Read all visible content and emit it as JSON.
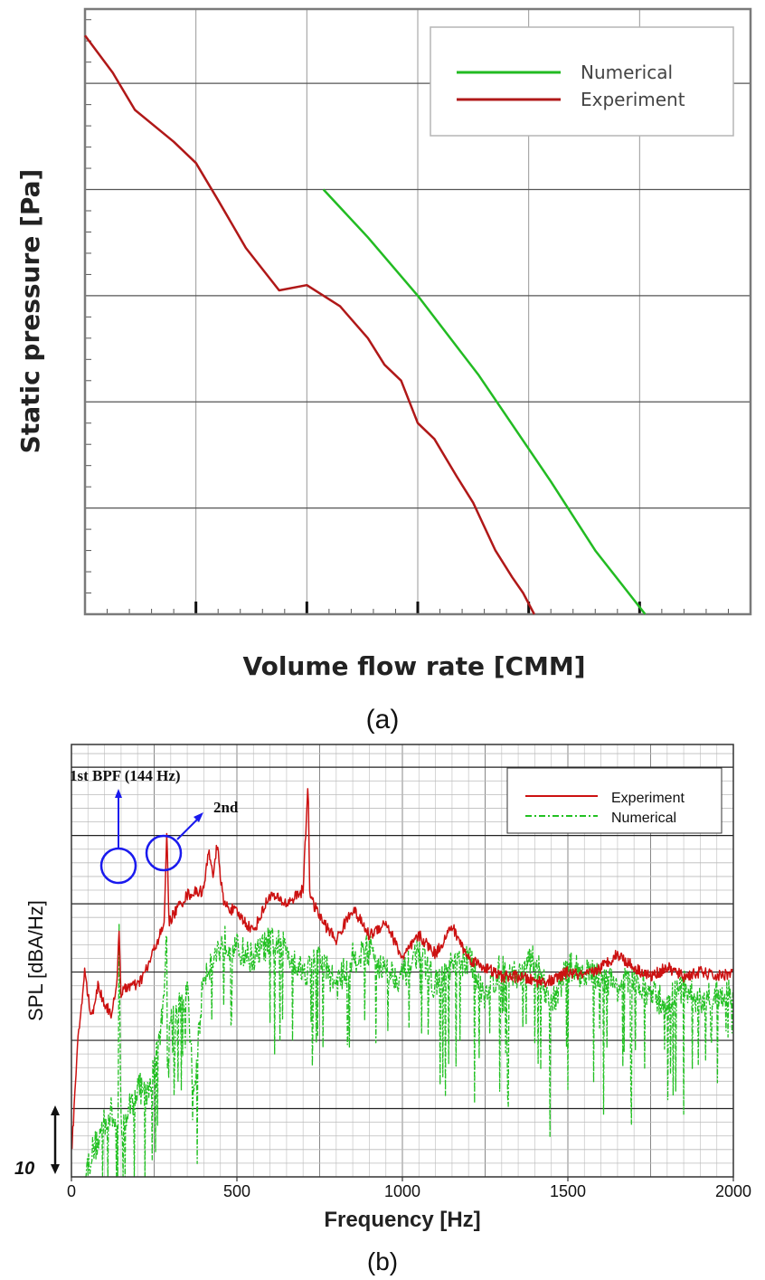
{
  "chart_data": [
    {
      "type": "line",
      "panel_label": "(a)",
      "title": "",
      "xlabel": "Volume flow rate [CMM]",
      "ylabel": "Static pressure [Pa]",
      "xlim": [
        0,
        6
      ],
      "ylim": [
        0,
        5.7
      ],
      "x_ticks_labeled": false,
      "y_ticks_labeled": false,
      "grid": true,
      "legend_position": "top-right",
      "series": [
        {
          "name": "Numerical",
          "color": "#22bb22",
          "x": [
            2.15,
            2.55,
            3.0,
            3.55,
            4.2,
            4.6,
            5.05
          ],
          "y": [
            4.0,
            3.55,
            3.0,
            2.25,
            1.25,
            0.6,
            0.0
          ]
        },
        {
          "name": "Experiment",
          "color": "#b01818",
          "x": [
            0.0,
            0.25,
            0.45,
            0.8,
            1.0,
            1.2,
            1.45,
            1.75,
            2.0,
            2.3,
            2.55,
            2.7,
            2.85,
            3.0,
            3.15,
            3.35,
            3.5,
            3.7,
            3.85,
            3.95,
            4.05
          ],
          "y": [
            5.45,
            5.1,
            4.75,
            4.45,
            4.25,
            3.9,
            3.45,
            3.05,
            3.1,
            2.9,
            2.6,
            2.35,
            2.2,
            1.8,
            1.65,
            1.3,
            1.05,
            0.6,
            0.35,
            0.2,
            0.0
          ]
        }
      ]
    },
    {
      "type": "line",
      "panel_label": "(b)",
      "title": "",
      "xlabel": "Frequency [Hz]",
      "ylabel": "SPL [dBA/Hz]",
      "xlim": [
        0,
        2000
      ],
      "ylim": [
        0,
        95
      ],
      "x_ticks": [
        0,
        500,
        1000,
        1500,
        2000
      ],
      "x_tick_labels": [
        "0",
        "500",
        "1000",
        "1500",
        "2000"
      ],
      "y_ticks_labeled": false,
      "grid": true,
      "legend_position": "top-right",
      "scale_bar_label": "10",
      "scale_bar_value": 10,
      "series": [
        {
          "name": "Experiment",
          "color": "#cc1111",
          "x": [
            0,
            20,
            40,
            60,
            80,
            100,
            120,
            135,
            144,
            150,
            170,
            200,
            230,
            260,
            280,
            288,
            295,
            320,
            350,
            400,
            415,
            430,
            440,
            460,
            500,
            550,
            600,
            650,
            700,
            715,
            720,
            730,
            760,
            800,
            850,
            900,
            950,
            1000,
            1050,
            1100,
            1150,
            1200,
            1250,
            1300,
            1350,
            1400,
            1450,
            1500,
            1550,
            1600,
            1650,
            1700,
            1750,
            1800,
            1850,
            1900,
            1950,
            2000
          ],
          "y": [
            5,
            30,
            45,
            35,
            42,
            38,
            36,
            40,
            54,
            40,
            42,
            42,
            46,
            52,
            55,
            76,
            56,
            59,
            62,
            63,
            72,
            66,
            73,
            60,
            58,
            54,
            62,
            60,
            63,
            87,
            63,
            60,
            56,
            52,
            59,
            53,
            56,
            48,
            53,
            49,
            55,
            48,
            46,
            44,
            44,
            43,
            43,
            45,
            44,
            46,
            49,
            46,
            44,
            46,
            44,
            45,
            44,
            45
          ]
        },
        {
          "name": "Numerical",
          "color": "#22c022",
          "x": [
            40,
            60,
            80,
            100,
            120,
            140,
            144,
            150,
            170,
            200,
            230,
            250,
            270,
            288,
            295,
            320,
            350,
            370,
            400,
            430,
            460,
            500,
            550,
            600,
            650,
            700,
            750,
            800,
            850,
            900,
            950,
            1000,
            1050,
            1100,
            1150,
            1200,
            1250,
            1300,
            1350,
            1400,
            1450,
            1500,
            1550,
            1600,
            1650,
            1700,
            1750,
            1800,
            1850,
            1900,
            1950,
            2000
          ],
          "y": [
            0,
            5,
            8,
            12,
            14,
            10,
            54,
            10,
            14,
            20,
            18,
            24,
            32,
            52,
            34,
            36,
            41,
            18,
            45,
            48,
            52,
            50,
            48,
            52,
            50,
            45,
            48,
            42,
            48,
            50,
            45,
            44,
            50,
            42,
            46,
            48,
            40,
            46,
            44,
            48,
            38,
            46,
            45,
            44,
            42,
            43,
            40,
            38,
            42,
            38,
            40,
            41
          ]
        }
      ],
      "annotations": [
        {
          "text": "1st BPF (144 Hz)",
          "x": 144
        },
        {
          "text": "2nd",
          "x": 288
        }
      ]
    }
  ]
}
